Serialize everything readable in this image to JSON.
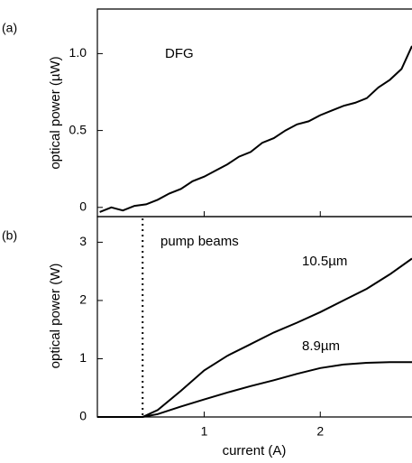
{
  "chart_data": [
    {
      "type": "line",
      "panel_label": "(a)",
      "ylabel": "optical power (µW)",
      "annotation": "DFG",
      "x": [
        0.1,
        0.2,
        0.3,
        0.4,
        0.5,
        0.6,
        0.7,
        0.8,
        0.9,
        1.0,
        1.1,
        1.2,
        1.3,
        1.4,
        1.5,
        1.6,
        1.7,
        1.8,
        1.9,
        2.0,
        2.1,
        2.2,
        2.3,
        2.4,
        2.5,
        2.6,
        2.7,
        2.79
      ],
      "series": [
        {
          "color": "#000000",
          "values": [
            -0.03,
            0.0,
            -0.02,
            0.01,
            0.02,
            0.05,
            0.09,
            0.12,
            0.17,
            0.2,
            0.24,
            0.28,
            0.33,
            0.36,
            0.42,
            0.45,
            0.5,
            0.54,
            0.56,
            0.6,
            0.63,
            0.66,
            0.68,
            0.71,
            0.78,
            0.83,
            0.9,
            1.05
          ]
        }
      ],
      "xlim": [
        0.08,
        2.79
      ],
      "xticks": [
        1,
        2
      ],
      "ylim": [
        -0.06,
        1.29
      ],
      "yticks": [
        0,
        0.5,
        {
          "value": 1,
          "label": "1.0"
        }
      ]
    },
    {
      "type": "line",
      "panel_label": "(b)",
      "ylabel": "optical power (W)",
      "xlabel": "current (A)",
      "annotation": "pump beams",
      "vline": 0.47,
      "x": [
        0.08,
        0.47,
        0.6,
        0.8,
        1.0,
        1.2,
        1.4,
        1.6,
        1.8,
        2.0,
        2.2,
        2.4,
        2.6,
        2.79
      ],
      "series": [
        {
          "name": "10.5µm",
          "color": "#000000",
          "values": [
            0,
            0,
            0.12,
            0.45,
            0.8,
            1.05,
            1.25,
            1.45,
            1.62,
            1.8,
            2.0,
            2.2,
            2.45,
            2.72
          ]
        },
        {
          "name": "8.9µm",
          "color": "#000000",
          "values": [
            0,
            0,
            0.05,
            0.18,
            0.3,
            0.42,
            0.53,
            0.63,
            0.74,
            0.84,
            0.9,
            0.93,
            0.94,
            0.94
          ]
        }
      ],
      "xlim": [
        0.08,
        2.79
      ],
      "xticks": [
        1,
        2
      ],
      "ylim": [
        0,
        3.44
      ],
      "yticks": [
        0,
        1,
        2,
        3
      ]
    }
  ]
}
